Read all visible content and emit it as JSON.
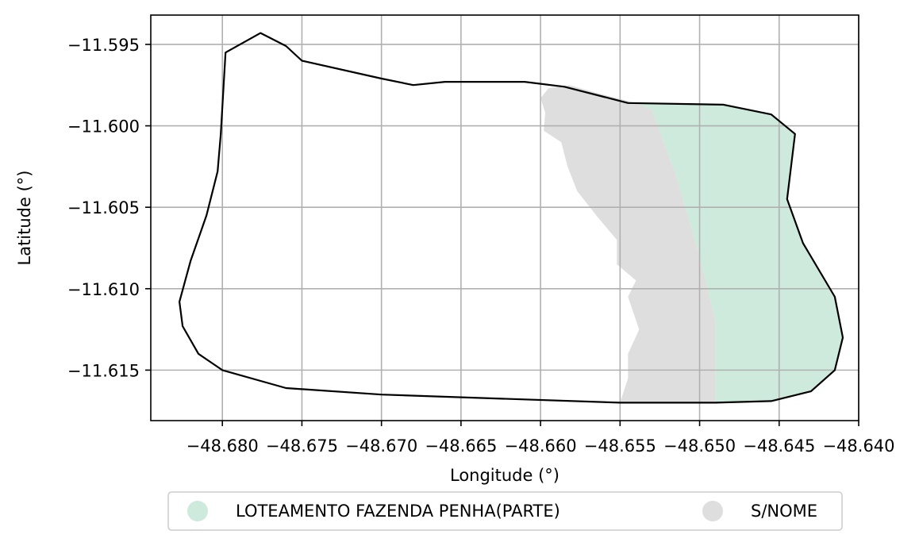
{
  "chart_data": {
    "type": "map",
    "xlabel": "Longitude (°)",
    "ylabel": "Latitude (°)",
    "xlim": [
      -48.6845,
      -48.64
    ],
    "ylim": [
      -11.6181,
      -11.5932
    ],
    "xticks": [
      -48.68,
      -48.675,
      -48.67,
      -48.665,
      -48.66,
      -48.655,
      -48.65,
      -48.645,
      -48.64
    ],
    "xtick_labels": [
      "−48.680",
      "−48.675",
      "−48.670",
      "−48.665",
      "−48.660",
      "−48.655",
      "−48.650",
      "−48.645",
      "−48.640"
    ],
    "yticks": [
      -11.595,
      -11.6,
      -11.605,
      -11.61,
      -11.615
    ],
    "ytick_labels": [
      "−11.595",
      "−11.600",
      "−11.605",
      "−11.610",
      "−11.615"
    ],
    "grid": true,
    "legend_position": "bottom-center",
    "boundary": {
      "stroke": "#000000",
      "coords": [
        [
          -48.6798,
          -11.5955
        ],
        [
          -48.6776,
          -11.5943
        ],
        [
          -48.676,
          -11.5951
        ],
        [
          -48.675,
          -11.596
        ],
        [
          -48.67,
          -11.5971
        ],
        [
          -48.668,
          -11.5975
        ],
        [
          -48.666,
          -11.5973
        ],
        [
          -48.661,
          -11.5973
        ],
        [
          -48.6585,
          -11.5976
        ],
        [
          -48.6545,
          -11.5986
        ],
        [
          -48.6485,
          -11.5987
        ],
        [
          -48.6455,
          -11.5993
        ],
        [
          -48.644,
          -11.6005
        ],
        [
          -48.6445,
          -11.6045
        ],
        [
          -48.6435,
          -11.6072
        ],
        [
          -48.6415,
          -11.6105
        ],
        [
          -48.641,
          -11.613
        ],
        [
          -48.6415,
          -11.615
        ],
        [
          -48.643,
          -11.6163
        ],
        [
          -48.6455,
          -11.6169
        ],
        [
          -48.649,
          -11.617
        ],
        [
          -48.655,
          -11.617
        ],
        [
          -48.67,
          -11.6165
        ],
        [
          -48.676,
          -11.6161
        ],
        [
          -48.68,
          -11.615
        ],
        [
          -48.6815,
          -11.614
        ],
        [
          -48.6825,
          -11.6123
        ],
        [
          -48.6827,
          -11.6108
        ],
        [
          -48.682,
          -11.6083
        ],
        [
          -48.681,
          -11.6055
        ],
        [
          -48.6803,
          -11.6028
        ],
        [
          -48.6801,
          -11.6005
        ],
        [
          -48.6798,
          -11.5955
        ]
      ]
    },
    "legend": [
      {
        "label": "LOTEAMENTO FAZENDA PENHA(PARTE)",
        "color": "#cdeadc"
      },
      {
        "label": "S/NOME",
        "color": "#dedede"
      }
    ],
    "regions": [
      {
        "label": "S/NOME",
        "color": "#dedede",
        "coords": [
          [
            -48.6595,
            -11.5977
          ],
          [
            -48.6582,
            -11.5975
          ],
          [
            -48.656,
            -11.5981
          ],
          [
            -48.654,
            -11.5986
          ],
          [
            -48.653,
            -11.599
          ],
          [
            -48.6515,
            -11.603
          ],
          [
            -48.65,
            -11.608
          ],
          [
            -48.649,
            -11.612
          ],
          [
            -48.649,
            -11.617
          ],
          [
            -48.655,
            -11.617
          ],
          [
            -48.6545,
            -11.6155
          ],
          [
            -48.6545,
            -11.614
          ],
          [
            -48.6538,
            -11.6125
          ],
          [
            -48.6545,
            -11.6105
          ],
          [
            -48.654,
            -11.6095
          ],
          [
            -48.6552,
            -11.6085
          ],
          [
            -48.6552,
            -11.607
          ],
          [
            -48.6565,
            -11.6055
          ],
          [
            -48.6577,
            -11.604
          ],
          [
            -48.6583,
            -11.6025
          ],
          [
            -48.6587,
            -11.601
          ],
          [
            -48.6598,
            -11.6003
          ],
          [
            -48.6597,
            -11.5992
          ],
          [
            -48.66,
            -11.5983
          ],
          [
            -48.6595,
            -11.5977
          ]
        ]
      },
      {
        "label": "LOTEAMENTO FAZENDA PENHA(PARTE)",
        "color": "#cdeadc",
        "coords": [
          [
            -48.654,
            -11.5986
          ],
          [
            -48.6485,
            -11.5987
          ],
          [
            -48.6455,
            -11.5993
          ],
          [
            -48.644,
            -11.6005
          ],
          [
            -48.6445,
            -11.6045
          ],
          [
            -48.6435,
            -11.6072
          ],
          [
            -48.6415,
            -11.6105
          ],
          [
            -48.641,
            -11.613
          ],
          [
            -48.6415,
            -11.615
          ],
          [
            -48.643,
            -11.6163
          ],
          [
            -48.6455,
            -11.6169
          ],
          [
            -48.649,
            -11.617
          ],
          [
            -48.649,
            -11.612
          ],
          [
            -48.65,
            -11.608
          ],
          [
            -48.6515,
            -11.603
          ],
          [
            -48.653,
            -11.599
          ],
          [
            -48.654,
            -11.5986
          ]
        ]
      }
    ]
  }
}
